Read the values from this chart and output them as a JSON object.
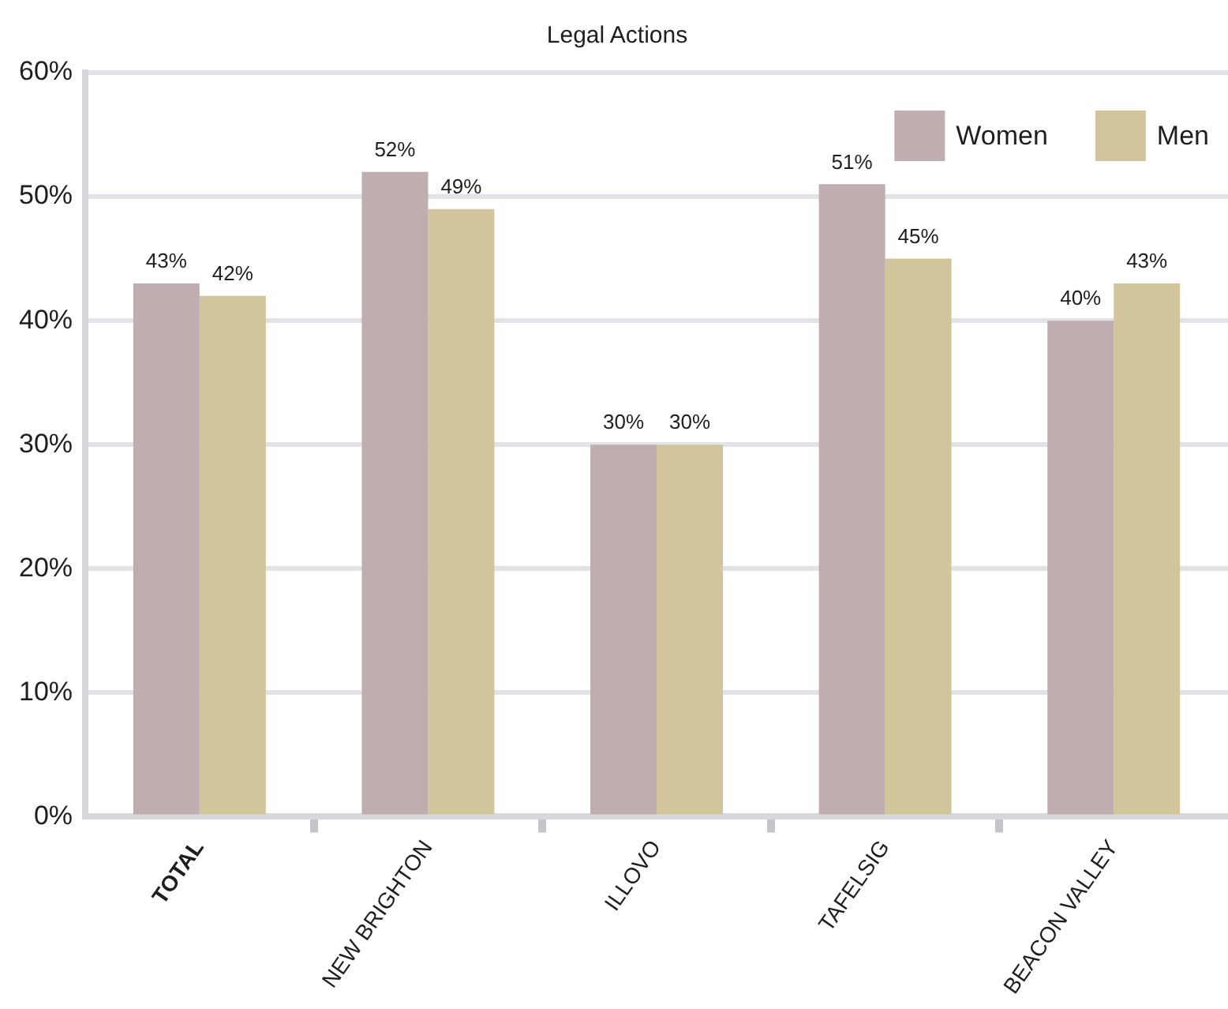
{
  "chart_data": {
    "type": "bar",
    "title": "Legal Actions",
    "categories": [
      "TOTAL",
      "NEW BRIGHTON",
      "ILLOVO",
      "TAFELSIG",
      "BEACON VALLEY"
    ],
    "series": [
      {
        "name": "Women",
        "color": "#bfadaf",
        "values": [
          43,
          52,
          30,
          51,
          40
        ],
        "value_labels": [
          "43%",
          "52%",
          "30%",
          "51%",
          "40%"
        ]
      },
      {
        "name": "Men",
        "color": "#d3c59b",
        "values": [
          42,
          49,
          30,
          45,
          43
        ],
        "value_labels": [
          "42%",
          "49%",
          "30%",
          "45%",
          "43%"
        ]
      }
    ],
    "ylim": [
      0,
      60
    ],
    "yticks": [
      {
        "value": 0,
        "label": "0%"
      },
      {
        "value": 10,
        "label": "10%"
      },
      {
        "value": 20,
        "label": "20%"
      },
      {
        "value": 30,
        "label": "30%"
      },
      {
        "value": 40,
        "label": "40%"
      },
      {
        "value": 50,
        "label": "50%"
      },
      {
        "value": 60,
        "label": "60%"
      }
    ],
    "grid": "y",
    "legend": "top right"
  }
}
